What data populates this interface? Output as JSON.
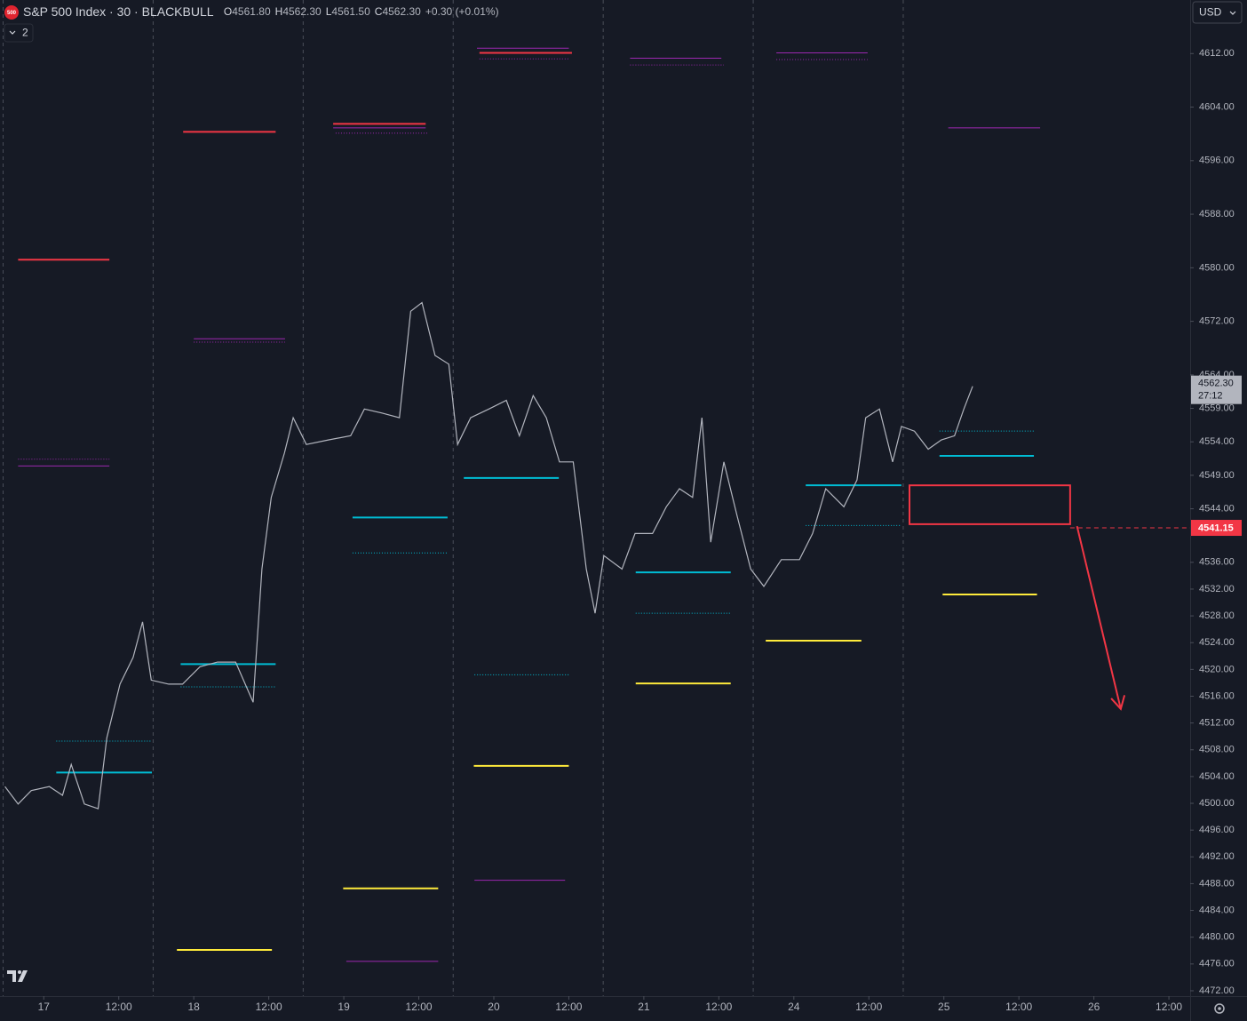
{
  "chart_data": {
    "type": "line",
    "title": "S&P 500 Index · 30 · BLACKBULL",
    "symbol_badge": "500",
    "ohlc": [
      {
        "label": "O",
        "value": "4561.80"
      },
      {
        "label": "H",
        "value": "4562.30"
      },
      {
        "label": "L",
        "value": "4561.50"
      },
      {
        "label": "C",
        "value": "4562.30"
      }
    ],
    "change": "+0.30 (+0.01%)",
    "currency": "USD",
    "indicator_count": "2",
    "series": [
      {
        "name": "S&P 500 Index",
        "color": "#b2b5be",
        "x": [
          -6.2,
          -4.1,
          -2.0,
          0.9,
          3.0,
          4.4,
          6.5,
          8.7,
          10.1,
          12.2,
          14.3,
          15.8,
          17.2,
          20.0,
          22.2,
          25.0,
          27.8,
          30.7,
          33.5,
          34.9,
          36.4,
          38.5,
          39.9,
          42.0,
          45.6,
          49.1,
          51.3,
          54.1,
          56.9,
          58.7,
          60.5,
          62.6,
          64.8,
          66.2,
          68.3,
          71.2,
          74.0,
          76.1,
          78.3,
          80.4,
          82.5,
          84.7,
          86.8,
          88.2,
          89.6,
          92.5,
          94.6,
          97.4,
          99.6,
          101.7,
          103.8,
          105.3,
          106.7,
          108.8,
          110.9,
          113.1,
          115.2,
          118.0,
          120.9,
          123.0,
          125.1,
          128.0,
          130.1,
          131.5,
          133.7,
          135.8,
          137.2,
          139.3,
          141.5,
          143.6,
          145.7,
          147.2,
          148.6
        ],
        "values": [
          4502.5,
          4499.9,
          4501.9,
          4502.5,
          4501.2,
          4505.8,
          4499.9,
          4499.2,
          4509.8,
          4517.8,
          4521.8,
          4527.1,
          4518.4,
          4517.8,
          4517.8,
          4520.4,
          4521.1,
          4521.1,
          4515.1,
          4535.0,
          4545.7,
          4552.3,
          4557.6,
          4553.6,
          4554.3,
          4554.9,
          4558.9,
          4558.3,
          4557.6,
          4573.5,
          4574.8,
          4566.9,
          4565.6,
          4553.6,
          4557.6,
          4558.9,
          4560.2,
          4554.9,
          4560.9,
          4557.6,
          4551.0,
          4551.0,
          4535.0,
          4528.4,
          4537.0,
          4535.0,
          4540.3,
          4540.3,
          4544.3,
          4547.0,
          4545.7,
          4557.6,
          4539.0,
          4551.0,
          4543.0,
          4535.0,
          4532.4,
          4536.4,
          4536.4,
          4540.3,
          4547.0,
          4544.3,
          4548.3,
          4557.6,
          4558.9,
          4551.0,
          4556.3,
          4555.6,
          4552.9,
          4554.3,
          4554.9,
          4558.9,
          4562.3
        ]
      }
    ],
    "levels": [
      {
        "price": 4581.2,
        "x": [
          -4.1,
          10.5
        ],
        "color": "#f23645",
        "style": "solid"
      },
      {
        "price": 4600.3,
        "x": [
          22.3,
          37.1
        ],
        "color": "#f23645",
        "style": "solid"
      },
      {
        "price": 4601.5,
        "x": [
          46.3,
          61.1
        ],
        "color": "#f23645",
        "style": "solid"
      },
      {
        "price": 4612.1,
        "x": [
          69.7,
          84.5
        ],
        "color": "#f23645",
        "style": "solid"
      },
      {
        "price": 4612.8,
        "x": [
          69.3,
          84.0
        ],
        "color": "#9c27b0",
        "style": "solid"
      },
      {
        "price": 4550.4,
        "x": [
          -4.1,
          10.5
        ],
        "color": "#9c27b0",
        "style": "solid"
      },
      {
        "price": 4569.4,
        "x": [
          24.0,
          38.6
        ],
        "color": "#9c27b0",
        "style": "solid"
      },
      {
        "price": 4600.9,
        "x": [
          46.3,
          61.1
        ],
        "color": "#9c27b0",
        "style": "solid"
      },
      {
        "price": 4611.3,
        "x": [
          93.8,
          108.4
        ],
        "color": "#9c27b0",
        "style": "solid"
      },
      {
        "price": 4612.1,
        "x": [
          117.2,
          131.8
        ],
        "color": "#9c27b0",
        "style": "solid"
      },
      {
        "price": 4600.9,
        "x": [
          144.7,
          159.4
        ],
        "color": "#9c27b0",
        "style": "solid"
      },
      {
        "price": 4476.4,
        "x": [
          48.4,
          63.1
        ],
        "color": "#9c27b0",
        "style": "solid"
      },
      {
        "price": 4488.5,
        "x": [
          68.9,
          83.4
        ],
        "color": "#9c27b0",
        "style": "solid"
      },
      {
        "price": 4551.4,
        "x": [
          -4.1,
          10.5
        ],
        "color": "#9c27b0",
        "style": "dotted"
      },
      {
        "price": 4568.9,
        "x": [
          24.0,
          38.6
        ],
        "color": "#9c27b0",
        "style": "dotted"
      },
      {
        "price": 4600.1,
        "x": [
          46.7,
          61.5
        ],
        "color": "#9c27b0",
        "style": "dotted"
      },
      {
        "price": 4611.2,
        "x": [
          69.7,
          84.0
        ],
        "color": "#9c27b0",
        "style": "dotted"
      },
      {
        "price": 4610.3,
        "x": [
          93.8,
          108.8
        ],
        "color": "#9c27b0",
        "style": "dotted"
      },
      {
        "price": 4611.1,
        "x": [
          117.2,
          131.8
        ],
        "color": "#9c27b0",
        "style": "dotted"
      },
      {
        "price": 4504.6,
        "x": [
          2.0,
          17.3
        ],
        "color": "#00bcd4",
        "style": "solid"
      },
      {
        "price": 4520.8,
        "x": [
          21.9,
          37.1
        ],
        "color": "#00bcd4",
        "style": "solid"
      },
      {
        "price": 4542.7,
        "x": [
          49.4,
          64.6
        ],
        "color": "#00bcd4",
        "style": "solid"
      },
      {
        "price": 4548.6,
        "x": [
          67.2,
          82.4
        ],
        "color": "#00bcd4",
        "style": "solid"
      },
      {
        "price": 4534.5,
        "x": [
          94.7,
          109.9
        ],
        "color": "#00bcd4",
        "style": "solid"
      },
      {
        "price": 4547.5,
        "x": [
          121.9,
          137.2
        ],
        "color": "#00bcd4",
        "style": "solid"
      },
      {
        "price": 4551.9,
        "x": [
          143.3,
          158.4
        ],
        "color": "#00bcd4",
        "style": "solid"
      },
      {
        "price": 4509.3,
        "x": [
          2.0,
          17.3
        ],
        "color": "#00bcd4",
        "style": "dotted"
      },
      {
        "price": 4517.4,
        "x": [
          21.9,
          37.1
        ],
        "color": "#00bcd4",
        "style": "dotted"
      },
      {
        "price": 4537.4,
        "x": [
          49.4,
          64.6
        ],
        "color": "#00bcd4",
        "style": "dotted"
      },
      {
        "price": 4519.2,
        "x": [
          68.9,
          84.0
        ],
        "color": "#00bcd4",
        "style": "dotted"
      },
      {
        "price": 4528.4,
        "x": [
          94.7,
          109.9
        ],
        "color": "#00bcd4",
        "style": "dotted"
      },
      {
        "price": 4541.5,
        "x": [
          121.9,
          137.2
        ],
        "color": "#00bcd4",
        "style": "dotted"
      },
      {
        "price": 4555.6,
        "x": [
          143.3,
          158.4
        ],
        "color": "#00bcd4",
        "style": "dotted"
      },
      {
        "price": 4478.1,
        "x": [
          21.3,
          36.5
        ],
        "color": "#ffeb3b",
        "style": "solid"
      },
      {
        "price": 4487.3,
        "x": [
          47.9,
          63.1
        ],
        "color": "#ffeb3b",
        "style": "solid"
      },
      {
        "price": 4505.6,
        "x": [
          68.8,
          84.0
        ],
        "color": "#ffeb3b",
        "style": "solid"
      },
      {
        "price": 4517.9,
        "x": [
          94.7,
          109.9
        ],
        "color": "#ffeb3b",
        "style": "solid"
      },
      {
        "price": 4524.3,
        "x": [
          115.5,
          130.8
        ],
        "color": "#ffeb3b",
        "style": "solid"
      },
      {
        "price": 4531.2,
        "x": [
          143.8,
          158.9
        ],
        "color": "#ffeb3b",
        "style": "solid"
      }
    ],
    "zone": {
      "price": [
        4547.5,
        4541.7
      ],
      "x": [
        138.5,
        164.2
      ],
      "color": "#f23645"
    },
    "arrow": {
      "x": [
        165.3,
        172.3
      ],
      "price": [
        4541.4,
        4514.1
      ],
      "color": "#f23645"
    },
    "alert_line": {
      "value": 4541.15,
      "label": "4541.15",
      "color": "#f23645"
    },
    "last_price": {
      "value": 4562.3,
      "label": "4562.30"
    },
    "countdown": "27:12",
    "session_breaks": [
      -6.5,
      17.5,
      41.5,
      65.5,
      89.5,
      113.5,
      137.5
    ],
    "xlim": [
      -7,
      183.4
    ],
    "xticks": [
      {
        "value": 0,
        "label": "17"
      },
      {
        "value": 12,
        "label": "12:00"
      },
      {
        "value": 24,
        "label": "18"
      },
      {
        "value": 36,
        "label": "12:00"
      },
      {
        "value": 48,
        "label": "19"
      },
      {
        "value": 60,
        "label": "12:00"
      },
      {
        "value": 72,
        "label": "20"
      },
      {
        "value": 84,
        "label": "12:00"
      },
      {
        "value": 96,
        "label": "21"
      },
      {
        "value": 108,
        "label": "12:00"
      },
      {
        "value": 120,
        "label": "24"
      },
      {
        "value": 132,
        "label": "12:00"
      },
      {
        "value": 144,
        "label": "25"
      },
      {
        "value": 156,
        "label": "12:00"
      },
      {
        "value": 168,
        "label": "26"
      },
      {
        "value": 180,
        "label": "12:00"
      }
    ],
    "ylim": [
      4471.2,
      4620
    ],
    "yticks": [
      {
        "value": 4612,
        "label": "4612.00"
      },
      {
        "value": 4604,
        "label": "4604.00"
      },
      {
        "value": 4596,
        "label": "4596.00"
      },
      {
        "value": 4588,
        "label": "4588.00"
      },
      {
        "value": 4580,
        "label": "4580.00"
      },
      {
        "value": 4572,
        "label": "4572.00"
      },
      {
        "value": 4564,
        "label": "4564.00"
      },
      {
        "value": 4559,
        "label": "4559.00"
      },
      {
        "value": 4554,
        "label": "4554.00"
      },
      {
        "value": 4549,
        "label": "4549.00"
      },
      {
        "value": 4544,
        "label": "4544.00"
      },
      {
        "value": 4536,
        "label": "4536.00"
      },
      {
        "value": 4532,
        "label": "4532.00"
      },
      {
        "value": 4528,
        "label": "4528.00"
      },
      {
        "value": 4524,
        "label": "4524.00"
      },
      {
        "value": 4520,
        "label": "4520.00"
      },
      {
        "value": 4516,
        "label": "4516.00"
      },
      {
        "value": 4512,
        "label": "4512.00"
      },
      {
        "value": 4508,
        "label": "4508.00"
      },
      {
        "value": 4504,
        "label": "4504.00"
      },
      {
        "value": 4500,
        "label": "4500.00"
      },
      {
        "value": 4496,
        "label": "4496.00"
      },
      {
        "value": 4492,
        "label": "4492.00"
      },
      {
        "value": 4488,
        "label": "4488.00"
      },
      {
        "value": 4484,
        "label": "4484.00"
      },
      {
        "value": 4480,
        "label": "4480.00"
      },
      {
        "value": 4476,
        "label": "4476.00"
      },
      {
        "value": 4472,
        "label": "4472.00"
      }
    ],
    "grid": false
  }
}
